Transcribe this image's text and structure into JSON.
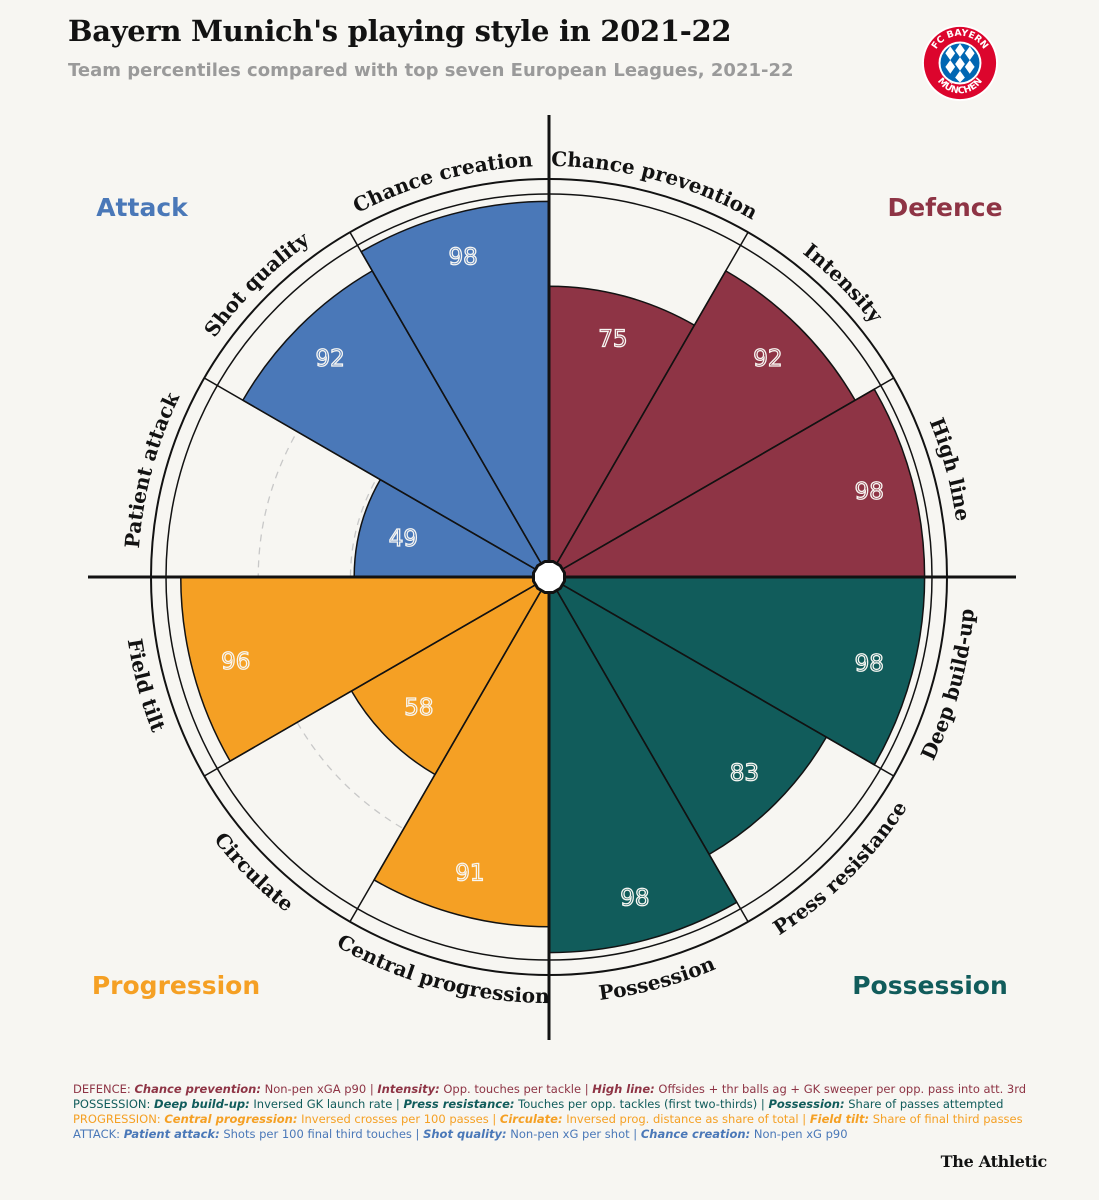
{
  "title": "Bayern Munich's playing style in 2021-22",
  "subtitle": "Team percentiles compared with top seven European Leagues, 2021-22",
  "logo": {
    "text_top": "FC BAYERN",
    "text_bottom": "MÜNCHEN",
    "color": "#dc052d",
    "secondary": "#0066b2"
  },
  "brand": "The Athletic",
  "chart_data": {
    "type": "radial-bar",
    "range": [
      0,
      100
    ],
    "groups": [
      {
        "name": "Defence",
        "color": "#8e3445"
      },
      {
        "name": "Possession",
        "color": "#115c5b"
      },
      {
        "name": "Progression",
        "color": "#f5a024"
      },
      {
        "name": "Attack",
        "color": "#4a78b8"
      }
    ],
    "segments": [
      {
        "label": "Chance prevention",
        "value": 75,
        "group": "Defence"
      },
      {
        "label": "Intensity",
        "value": 92,
        "group": "Defence"
      },
      {
        "label": "High line",
        "value": 98,
        "group": "Defence"
      },
      {
        "label": "Deep build-up",
        "value": 98,
        "group": "Possession"
      },
      {
        "label": "Press resistance",
        "value": 83,
        "group": "Possession"
      },
      {
        "label": "Possession",
        "value": 98,
        "group": "Possession"
      },
      {
        "label": "Central progression",
        "value": 91,
        "group": "Progression"
      },
      {
        "label": "Circulate",
        "value": 58,
        "group": "Progression"
      },
      {
        "label": "Field tilt",
        "value": 96,
        "group": "Progression"
      },
      {
        "label": "Patient attack",
        "value": 49,
        "group": "Attack"
      },
      {
        "label": "Shot quality",
        "value": 92,
        "group": "Attack"
      },
      {
        "label": "Chance creation",
        "value": 98,
        "group": "Attack"
      }
    ]
  },
  "notes": [
    {
      "color": "#8e3445",
      "parts": [
        {
          "t": "DEFENCE: "
        },
        {
          "t": "Chance prevention:",
          "b": true
        },
        {
          "t": " Non-pen xGA p90 | "
        },
        {
          "t": "Intensity:",
          "b": true
        },
        {
          "t": " Opp. touches per tackle | "
        },
        {
          "t": "High line:",
          "b": true
        },
        {
          "t": " Offsides + thr balls ag + GK sweeper per opp. pass into att. 3rd"
        }
      ]
    },
    {
      "color": "#115c5b",
      "parts": [
        {
          "t": "POSSESSION: "
        },
        {
          "t": "Deep build-up:",
          "b": true
        },
        {
          "t": " Inversed GK launch rate | "
        },
        {
          "t": "Press resistance:",
          "b": true
        },
        {
          "t": " Touches per opp. tackles (first two-thirds) | "
        },
        {
          "t": "Possession:",
          "b": true
        },
        {
          "t": " Share of passes attempted"
        }
      ]
    },
    {
      "color": "#f5a024",
      "parts": [
        {
          "t": "PROGRESSION: "
        },
        {
          "t": "Central progression:",
          "b": true
        },
        {
          "t": " Inversed crosses per 100 passes | "
        },
        {
          "t": "Circulate:",
          "b": true
        },
        {
          "t": " Inversed prog. distance as share of total | "
        },
        {
          "t": "Field tilt:",
          "b": true
        },
        {
          "t": " Share of final third passes"
        }
      ]
    },
    {
      "color": "#4a78b8",
      "parts": [
        {
          "t": "ATTACK: "
        },
        {
          "t": "Patient attack:",
          "b": true
        },
        {
          "t": " Shots per 100 final third touches | "
        },
        {
          "t": "Shot quality:",
          "b": true
        },
        {
          "t": " Non-pen xG per shot | "
        },
        {
          "t": "Chance creation:",
          "b": true
        },
        {
          "t": " Non-pen xG p90"
        }
      ]
    }
  ]
}
